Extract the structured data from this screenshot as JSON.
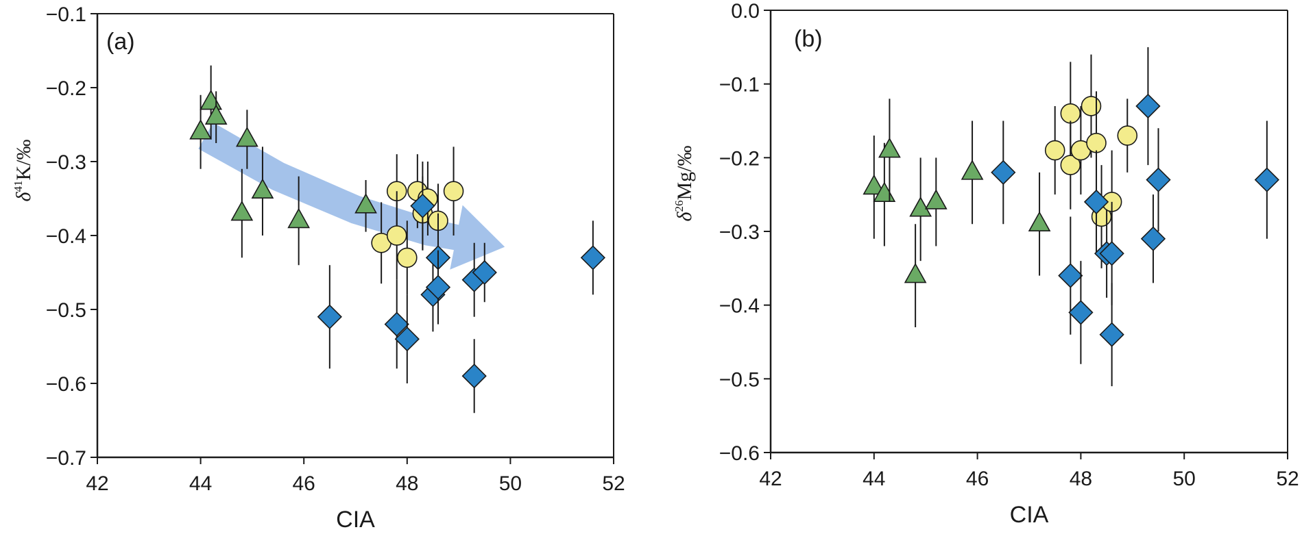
{
  "chart_data": [
    {
      "type": "scatter",
      "panel_label": "(a)",
      "xlabel": "CIA",
      "ylabel": {
        "delta": "δ",
        "isotope": "41",
        "element": "K",
        "unit": "/‰"
      },
      "xlim": [
        42,
        52
      ],
      "ylim": [
        -0.7,
        -0.1
      ],
      "xticks": [
        "42",
        "44",
        "46",
        "48",
        "50",
        "52"
      ],
      "yticks": [
        "−0.7",
        "−0.6",
        "−0.5",
        "−0.4",
        "−0.3",
        "−0.2",
        "−0.1"
      ],
      "trend_arrow": {
        "color": "#a4c2ea",
        "path": [
          [
            44.1,
            -0.265
          ],
          [
            45.5,
            -0.32
          ],
          [
            47.0,
            -0.365
          ],
          [
            48.4,
            -0.395
          ],
          [
            49.5,
            -0.41
          ]
        ]
      },
      "series": [
        {
          "marker": "triangle",
          "color": "#6aaa64",
          "points": [
            {
              "x": 44.0,
              "y": -0.26,
              "err": 0.05
            },
            {
              "x": 44.2,
              "y": -0.22,
              "err": 0.05
            },
            {
              "x": 44.3,
              "y": -0.24,
              "err": 0.035
            },
            {
              "x": 44.8,
              "y": -0.37,
              "err": 0.06
            },
            {
              "x": 44.9,
              "y": -0.27,
              "err": 0.04
            },
            {
              "x": 45.2,
              "y": -0.34,
              "err": 0.06
            },
            {
              "x": 45.9,
              "y": -0.38,
              "err": 0.06
            },
            {
              "x": 47.2,
              "y": -0.36,
              "err": 0.035
            }
          ]
        },
        {
          "marker": "circle",
          "color": "#f3ec8c",
          "points": [
            {
              "x": 47.5,
              "y": -0.41,
              "err": 0.055
            },
            {
              "x": 47.8,
              "y": -0.34,
              "err": 0.05
            },
            {
              "x": 47.8,
              "y": -0.4,
              "err": 0.06
            },
            {
              "x": 48.0,
              "y": -0.43,
              "err": 0.05
            },
            {
              "x": 48.2,
              "y": -0.34,
              "err": 0.05
            },
            {
              "x": 48.3,
              "y": -0.37,
              "err": 0.05
            },
            {
              "x": 48.4,
              "y": -0.35,
              "err": 0.05
            },
            {
              "x": 48.6,
              "y": -0.38,
              "err": 0.05
            },
            {
              "x": 48.9,
              "y": -0.34,
              "err": 0.06
            }
          ]
        },
        {
          "marker": "diamond",
          "color": "#2a84c8",
          "points": [
            {
              "x": 46.5,
              "y": -0.51,
              "err": 0.07
            },
            {
              "x": 47.8,
              "y": -0.52,
              "err": 0.06
            },
            {
              "x": 48.0,
              "y": -0.54,
              "err": 0.06
            },
            {
              "x": 48.3,
              "y": -0.36,
              "err": 0.06
            },
            {
              "x": 48.5,
              "y": -0.48,
              "err": 0.05
            },
            {
              "x": 48.6,
              "y": -0.43,
              "err": 0.06
            },
            {
              "x": 48.6,
              "y": -0.47,
              "err": 0.05
            },
            {
              "x": 49.3,
              "y": -0.46,
              "err": 0.05
            },
            {
              "x": 49.3,
              "y": -0.59,
              "err": 0.05
            },
            {
              "x": 49.5,
              "y": -0.45,
              "err": 0.04
            },
            {
              "x": 51.6,
              "y": -0.43,
              "err": 0.05
            }
          ]
        }
      ]
    },
    {
      "type": "scatter",
      "panel_label": "(b)",
      "xlabel": "CIA",
      "ylabel": {
        "delta": "δ",
        "isotope": "26",
        "element": "Mg",
        "unit": "/‰"
      },
      "xlim": [
        42,
        52
      ],
      "ylim": [
        -0.6,
        0.0
      ],
      "xticks": [
        "42",
        "44",
        "46",
        "48",
        "50",
        "52"
      ],
      "yticks": [
        "−0.6",
        "−0.5",
        "−0.4",
        "−0.3",
        "−0.2",
        "−0.1",
        "0.0"
      ],
      "series": [
        {
          "marker": "triangle",
          "color": "#6aaa64",
          "points": [
            {
              "x": 44.0,
              "y": -0.24,
              "err": 0.07
            },
            {
              "x": 44.2,
              "y": -0.25,
              "err": 0.07
            },
            {
              "x": 44.3,
              "y": -0.19,
              "err": 0.07
            },
            {
              "x": 44.8,
              "y": -0.36,
              "err": 0.07
            },
            {
              "x": 44.9,
              "y": -0.27,
              "err": 0.07
            },
            {
              "x": 45.2,
              "y": -0.26,
              "err": 0.06
            },
            {
              "x": 45.9,
              "y": -0.22,
              "err": 0.07
            },
            {
              "x": 47.2,
              "y": -0.29,
              "err": 0.07
            }
          ]
        },
        {
          "marker": "circle",
          "color": "#f3ec8c",
          "points": [
            {
              "x": 47.5,
              "y": -0.19,
              "err": 0.06
            },
            {
              "x": 47.8,
              "y": -0.14,
              "err": 0.07
            },
            {
              "x": 47.8,
              "y": -0.21,
              "err": 0.06
            },
            {
              "x": 48.0,
              "y": -0.19,
              "err": 0.06
            },
            {
              "x": 48.2,
              "y": -0.13,
              "err": 0.07
            },
            {
              "x": 48.3,
              "y": -0.18,
              "err": 0.07
            },
            {
              "x": 48.4,
              "y": -0.28,
              "err": 0.07
            },
            {
              "x": 48.6,
              "y": -0.26,
              "err": 0.07
            },
            {
              "x": 48.9,
              "y": -0.17,
              "err": 0.05
            }
          ]
        },
        {
          "marker": "diamond",
          "color": "#2a84c8",
          "points": [
            {
              "x": 46.5,
              "y": -0.22,
              "err": 0.07
            },
            {
              "x": 47.8,
              "y": -0.36,
              "err": 0.08
            },
            {
              "x": 48.0,
              "y": -0.41,
              "err": 0.07
            },
            {
              "x": 48.3,
              "y": -0.26,
              "err": 0.07
            },
            {
              "x": 48.5,
              "y": -0.33,
              "err": 0.06
            },
            {
              "x": 48.6,
              "y": -0.33,
              "err": 0.07
            },
            {
              "x": 48.6,
              "y": -0.44,
              "err": 0.07
            },
            {
              "x": 49.3,
              "y": -0.13,
              "err": 0.08
            },
            {
              "x": 49.4,
              "y": -0.31,
              "err": 0.06
            },
            {
              "x": 49.5,
              "y": -0.23,
              "err": 0.07
            },
            {
              "x": 51.6,
              "y": -0.23,
              "err": 0.08
            }
          ]
        }
      ]
    }
  ]
}
